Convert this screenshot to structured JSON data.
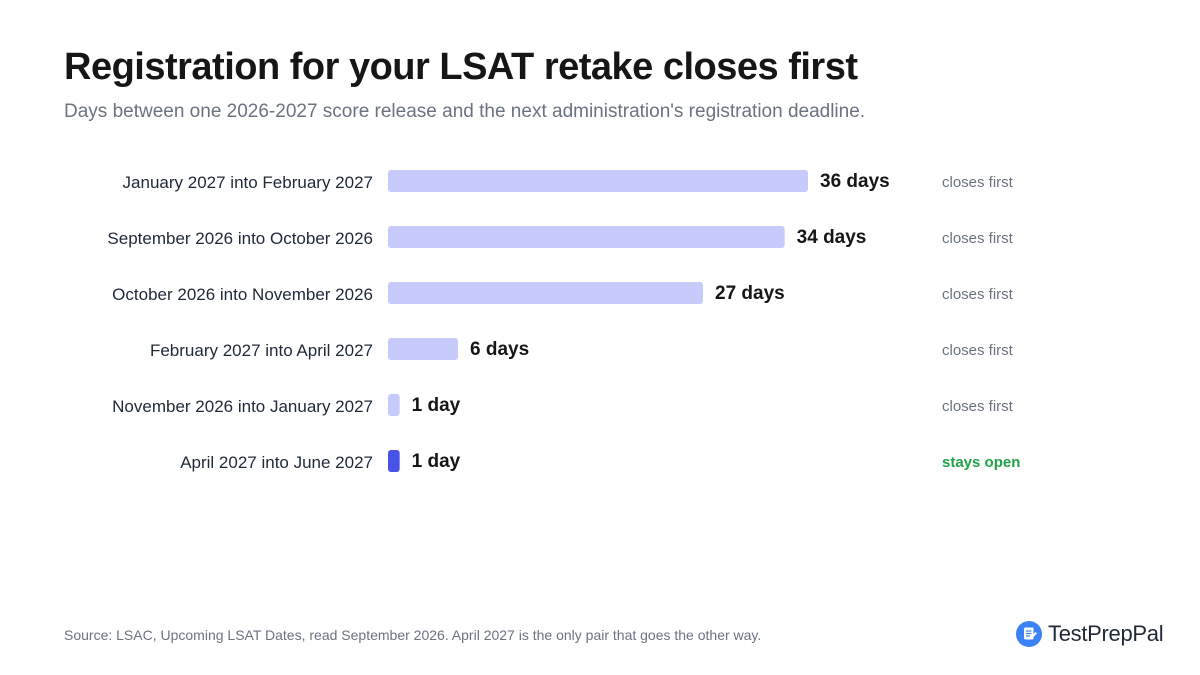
{
  "header": {
    "title": "Registration for your LSAT retake closes first",
    "subtitle": "Days between one 2026-2027 score release and the next administration's registration deadline."
  },
  "chart_data": {
    "type": "bar",
    "orientation": "horizontal",
    "title": "Registration for your LSAT retake closes first",
    "subtitle": "Days between one 2026-2027 score release and the next administration's registration deadline.",
    "xlabel": "",
    "ylabel": "",
    "xlim": [
      0,
      36
    ],
    "grid": false,
    "categories": [
      "January 2027 into February 2027",
      "September 2026 into October 2026",
      "October 2026 into November 2026",
      "February 2027 into April 2027",
      "November 2026 into January 2027",
      "April 2027 into June 2027"
    ],
    "values": [
      36,
      34,
      27,
      6,
      1,
      1
    ],
    "value_labels": [
      "36 days",
      "34 days",
      "27 days",
      "6 days",
      "1 day",
      "1 day"
    ],
    "status_labels": [
      "closes first",
      "closes first",
      "closes first",
      "closes first",
      "closes first",
      "stays open"
    ],
    "bar_colors": [
      "#c7cbfb",
      "#c7cbfb",
      "#c7cbfb",
      "#c7cbfb",
      "#c7cbfb",
      "#4653e6"
    ],
    "status_colors": [
      "#6b7280",
      "#6b7280",
      "#6b7280",
      "#6b7280",
      "#6b7280",
      "#22a34a"
    ]
  },
  "footer": {
    "source": "Source: LSAC, Upcoming LSAT Dates, read September 2026. April 2027 is the only pair that goes the other way.",
    "brand": "TestPrepPal",
    "brand_icon": "testpreppal-logo-icon"
  },
  "colors": {
    "bar_default": "#c7cbfb",
    "bar_highlight": "#4653e6",
    "status_closes": "#6b7280",
    "status_open": "#22a34a",
    "brand_blue": "#3b82f6"
  }
}
